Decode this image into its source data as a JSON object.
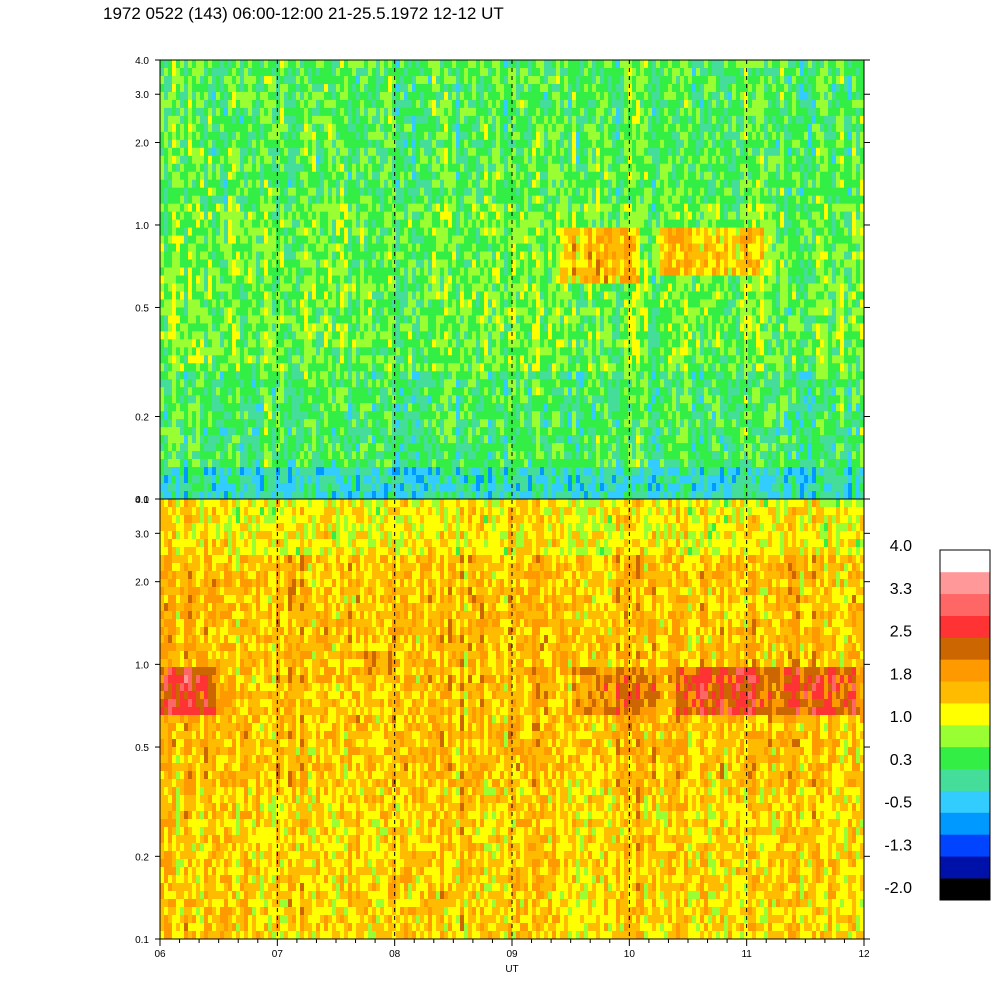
{
  "chart_data": {
    "type": "heatmap",
    "title": "1972 0522 (143) 06:00-12:00 21-25.5.1972  12-12 UT",
    "xlabel": "UT",
    "x_ticks": [
      "06",
      "07",
      "08",
      "09",
      "10",
      "11",
      "12"
    ],
    "xlim": [
      6,
      12
    ],
    "yscale": "log",
    "panels": [
      {
        "name": "",
        "ylim": [
          0.1,
          4.0
        ],
        "y_ticks": [
          "0.1",
          "0.2",
          "0.5",
          "1.0",
          "2.0",
          "3.0",
          "4.0"
        ],
        "base_level": 0.6,
        "band_features": [
          {
            "x_range": [
              9.4,
              10.1
            ],
            "y_range": [
              0.6,
              1.0
            ],
            "level": 1.6
          },
          {
            "x_range": [
              10.2,
              11.2
            ],
            "y_range": [
              0.65,
              1.0
            ],
            "level": 1.5
          }
        ]
      },
      {
        "name": "",
        "ylim": [
          0.1,
          4.0
        ],
        "y_ticks": [
          "0.1",
          "0.2",
          "0.5",
          "1.0",
          "2.0",
          "3.0",
          "4.0"
        ],
        "base_level": 1.6,
        "band_features": [
          {
            "x_range": [
              6.0,
              6.5
            ],
            "y_range": [
              0.65,
              0.95
            ],
            "level": 2.6
          },
          {
            "x_range": [
              7.7,
              8.0
            ],
            "y_range": [
              0.9,
              1.1
            ],
            "level": 2.0
          },
          {
            "x_range": [
              9.5,
              10.3
            ],
            "y_range": [
              0.65,
              0.95
            ],
            "level": 2.1
          },
          {
            "x_range": [
              10.4,
              11.3
            ],
            "y_range": [
              0.65,
              1.0
            ],
            "level": 2.6
          },
          {
            "x_range": [
              11.3,
              12.0
            ],
            "y_range": [
              0.65,
              1.0
            ],
            "level": 2.5
          }
        ]
      }
    ],
    "vertical_dashed_lines_at": [
      7,
      8,
      9,
      10,
      11
    ],
    "colorbar": {
      "labels": [
        "4.0",
        "3.3",
        "2.5",
        "1.8",
        "1.0",
        "0.3",
        "-0.5",
        "-1.3",
        "-2.0"
      ],
      "min": -2.0,
      "max": 4.0,
      "colors": [
        "#000000",
        "#0011aa",
        "#0044ff",
        "#0099ff",
        "#33ccff",
        "#44dd99",
        "#33ee44",
        "#99ff33",
        "#ffff00",
        "#ffbb00",
        "#ff9900",
        "#cc6600",
        "#ff3333",
        "#ff6666",
        "#ff9999",
        "#ffffff"
      ]
    }
  }
}
